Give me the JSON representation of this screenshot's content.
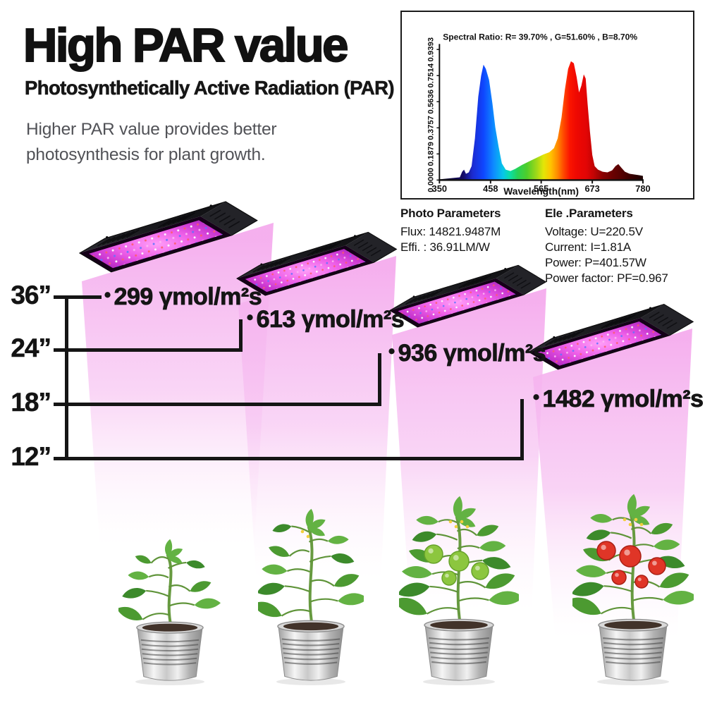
{
  "header": {
    "title": "High PAR value",
    "subtitle": "Photosynthetically Active Radiation (PAR)",
    "description_line1": "Higher PAR value provides better",
    "description_line2": "photosynthesis for plant growth."
  },
  "chart_data": {
    "type": "area",
    "title": "Spectral  Ratio:  R= 39.70% , G=51.60% , B=8.70%",
    "xlabel": "Wavelength(nm)",
    "ylabel": "",
    "x_ticks": [
      "350",
      "458",
      "565",
      "673",
      "780"
    ],
    "y_ticks": [
      "0.0000",
      "0.1879",
      "0.3757",
      "0.5636",
      "0.7514",
      "0.9393"
    ],
    "xlim": [
      350,
      780
    ],
    "ylim": [
      0,
      0.9393
    ],
    "grid": false,
    "legend": "none",
    "series": [
      {
        "name": "spectral power distribution",
        "points": [
          [
            350,
            0.005
          ],
          [
            365,
            0.01
          ],
          [
            380,
            0.015
          ],
          [
            393,
            0.02
          ],
          [
            398,
            0.06
          ],
          [
            402,
            0.075
          ],
          [
            406,
            0.045
          ],
          [
            412,
            0.055
          ],
          [
            418,
            0.1
          ],
          [
            425,
            0.3
          ],
          [
            432,
            0.6
          ],
          [
            438,
            0.75
          ],
          [
            443,
            0.83
          ],
          [
            448,
            0.8
          ],
          [
            455,
            0.72
          ],
          [
            462,
            0.55
          ],
          [
            468,
            0.38
          ],
          [
            475,
            0.24
          ],
          [
            482,
            0.12
          ],
          [
            490,
            0.075
          ],
          [
            500,
            0.065
          ],
          [
            510,
            0.08
          ],
          [
            525,
            0.11
          ],
          [
            540,
            0.135
          ],
          [
            555,
            0.16
          ],
          [
            570,
            0.185
          ],
          [
            582,
            0.2
          ],
          [
            592,
            0.23
          ],
          [
            600,
            0.3
          ],
          [
            608,
            0.45
          ],
          [
            615,
            0.65
          ],
          [
            622,
            0.8
          ],
          [
            628,
            0.855
          ],
          [
            634,
            0.84
          ],
          [
            640,
            0.74
          ],
          [
            645,
            0.63
          ],
          [
            650,
            0.68
          ],
          [
            655,
            0.76
          ],
          [
            659,
            0.73
          ],
          [
            663,
            0.55
          ],
          [
            668,
            0.35
          ],
          [
            673,
            0.18
          ],
          [
            678,
            0.1
          ],
          [
            685,
            0.075
          ],
          [
            695,
            0.06
          ],
          [
            705,
            0.055
          ],
          [
            715,
            0.07
          ],
          [
            722,
            0.1
          ],
          [
            728,
            0.115
          ],
          [
            734,
            0.09
          ],
          [
            742,
            0.06
          ],
          [
            752,
            0.045
          ],
          [
            762,
            0.04
          ],
          [
            772,
            0.035
          ],
          [
            780,
            0.03
          ]
        ]
      }
    ],
    "spectrum_gradient": [
      {
        "nm": 350,
        "color": "#05001a"
      },
      {
        "nm": 400,
        "color": "#140a66"
      },
      {
        "nm": 420,
        "color": "#1c2bd0"
      },
      {
        "nm": 443,
        "color": "#0f46ff"
      },
      {
        "nm": 465,
        "color": "#0e8cff"
      },
      {
        "nm": 485,
        "color": "#06c8e8"
      },
      {
        "nm": 500,
        "color": "#0cdfa0"
      },
      {
        "nm": 515,
        "color": "#27d257"
      },
      {
        "nm": 535,
        "color": "#4fce2a"
      },
      {
        "nm": 555,
        "color": "#9ed819"
      },
      {
        "nm": 570,
        "color": "#e3e607"
      },
      {
        "nm": 585,
        "color": "#ffc400"
      },
      {
        "nm": 600,
        "color": "#ff8800"
      },
      {
        "nm": 612,
        "color": "#ff4a00"
      },
      {
        "nm": 625,
        "color": "#fb1500"
      },
      {
        "nm": 640,
        "color": "#ee0802"
      },
      {
        "nm": 660,
        "color": "#e30505"
      },
      {
        "nm": 675,
        "color": "#c40404"
      },
      {
        "nm": 695,
        "color": "#8a0202"
      },
      {
        "nm": 715,
        "color": "#6b0101"
      },
      {
        "nm": 735,
        "color": "#550101"
      },
      {
        "nm": 760,
        "color": "#330000"
      },
      {
        "nm": 780,
        "color": "#1d0000"
      }
    ]
  },
  "photo_parameters": {
    "heading": "Photo Parameters",
    "line1": "Flux: 14821.9487M",
    "line2": "Effi. : 36.91LM/W"
  },
  "ele_parameters": {
    "heading": "Ele .Parameters",
    "line1": "Voltage: U=220.5V",
    "line2": "Current: I=1.81A",
    "line3": "Power: P=401.57W",
    "line4": "Power factor: PF=0.967"
  },
  "measurements": {
    "heights": [
      "36”",
      "24”",
      "18”",
      "12”"
    ],
    "par_values": [
      {
        "bullet": "•",
        "value": "299",
        "unit": "γmol/m²s"
      },
      {
        "bullet": "•",
        "value": "613",
        "unit": "γmol/m²s"
      },
      {
        "bullet": "•",
        "value": "936",
        "unit": "γmol/m²s"
      },
      {
        "bullet": "•",
        "value": "1482",
        "unit": "γmol/m²s"
      }
    ]
  },
  "colors": {
    "beam_pink": "#f5aeee",
    "led_magenta": "#ee5fe8",
    "text_black": "#151515",
    "description_gray": "#515257"
  }
}
